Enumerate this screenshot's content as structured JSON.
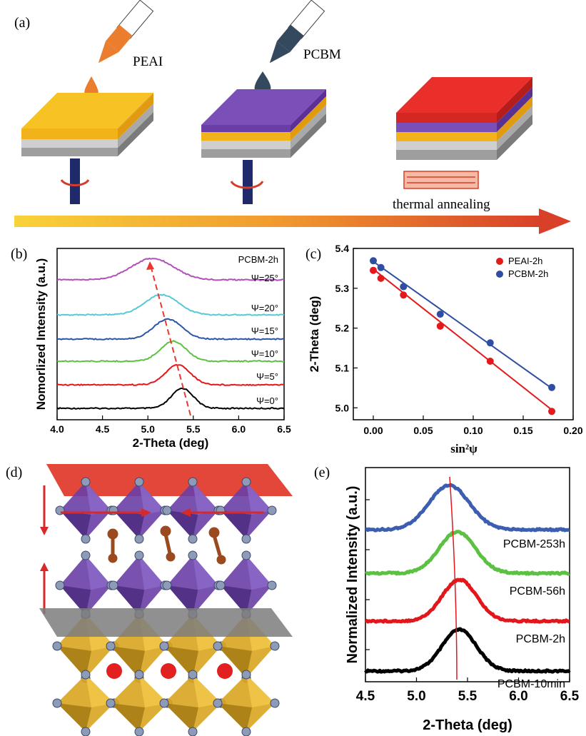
{
  "panels": {
    "a": {
      "label": "(a)",
      "reagent1": "PEAI",
      "reagent2": "PCBM",
      "step3": "thermal annealing",
      "colors": {
        "yellow": "#f7c324",
        "purple": "#7b4fb8",
        "red": "#ea2e2a",
        "grey": "#b6b6b6",
        "pipette_orange": "#eb7e2e",
        "pipette_dark": "#34495e",
        "spindle": "#1f2a6b"
      }
    },
    "b": {
      "label": "(b)"
    },
    "c": {
      "label": "(c)"
    },
    "d": {
      "label": "(d)"
    },
    "e": {
      "label": "(e)"
    }
  },
  "chart_data": [
    {
      "id": "b",
      "type": "line",
      "title": "PCBM-2h",
      "xlabel": "2-Theta (deg)",
      "ylabel": "Nomorlized Intensity (a.u.)",
      "xlim": [
        4.0,
        6.5
      ],
      "xticks": [
        "4.0",
        "4.5",
        "5.0",
        "5.5",
        "6.0",
        "6.5"
      ],
      "series": [
        {
          "name": "Ψ=0°",
          "peak": 5.38,
          "width": 0.17,
          "color": "#000000"
        },
        {
          "name": "Ψ=5°",
          "peak": 5.33,
          "width": 0.19,
          "color": "#e3161b"
        },
        {
          "name": "Ψ=10°",
          "peak": 5.28,
          "width": 0.2,
          "color": "#5cc042"
        },
        {
          "name": "Ψ=15°",
          "peak": 5.22,
          "width": 0.22,
          "color": "#2c55a8"
        },
        {
          "name": "Ψ=20°",
          "peak": 5.15,
          "width": 0.26,
          "color": "#55cad6"
        },
        {
          "name": "Ψ=25°",
          "peak": 5.05,
          "width": 0.33,
          "color": "#b150b8"
        }
      ],
      "grid": false
    },
    {
      "id": "c",
      "type": "scatter",
      "xlabel": "sin²ψ",
      "ylabel": "2-Theta (deg)",
      "xlim": [
        -0.02,
        0.2
      ],
      "ylim": [
        4.97,
        5.4
      ],
      "xticks": [
        "0.00",
        "0.05",
        "0.10",
        "0.15",
        "0.20"
      ],
      "yticks": [
        "5.0",
        "5.1",
        "5.2",
        "5.3",
        "5.4"
      ],
      "legend": "top-right",
      "series": [
        {
          "name": "PEAI-2h",
          "color": "#e31a1c",
          "x": [
            0.0,
            0.0076,
            0.0302,
            0.067,
            0.117,
            0.1786
          ],
          "y": [
            5.345,
            5.325,
            5.283,
            5.205,
            5.117,
            4.991
          ],
          "fit": [
            [
              0.0,
              5.348
            ],
            [
              0.1786,
              4.995
            ]
          ]
        },
        {
          "name": "PCBM-2h",
          "color": "#2f4ea2",
          "x": [
            0.0,
            0.0076,
            0.0302,
            0.067,
            0.117,
            0.1786
          ],
          "y": [
            5.369,
            5.352,
            5.304,
            5.235,
            5.163,
            5.051
          ],
          "fit": [
            [
              0.0,
              5.367
            ],
            [
              0.1786,
              5.049
            ]
          ]
        }
      ]
    },
    {
      "id": "e",
      "type": "line",
      "xlabel": "2-Theta (deg)",
      "ylabel": "Normalized Intensity (a.u.)",
      "xlim": [
        4.5,
        6.5
      ],
      "xticks": [
        "4.5",
        "5.0",
        "5.5",
        "6.0",
        "6.5"
      ],
      "series": [
        {
          "name": "PCBM-10min",
          "peak": 5.42,
          "width": 0.17,
          "color": "#000000"
        },
        {
          "name": "PCBM-2h",
          "peak": 5.42,
          "width": 0.17,
          "color": "#e3161b"
        },
        {
          "name": "PCBM-56h",
          "peak": 5.4,
          "width": 0.18,
          "color": "#5cc042"
        },
        {
          "name": "PCBM-253h",
          "peak": 5.32,
          "width": 0.2,
          "color": "#3c5eb0"
        }
      ]
    }
  ]
}
